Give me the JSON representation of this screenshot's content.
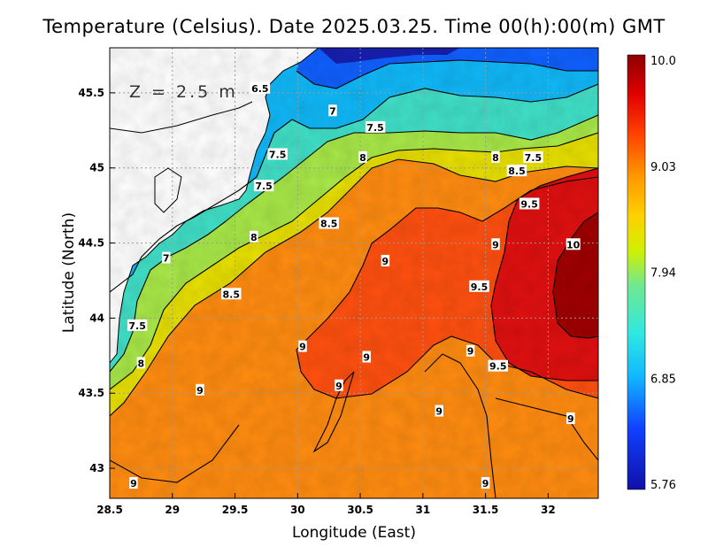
{
  "chart_data": {
    "type": "heatmap",
    "title": "Temperature (Celsius). Date 2025.03.25. Time 00(h):00(m) GMT",
    "xlabel": "Longitude (East)",
    "ylabel": "Latitude (North)",
    "annotation": "Z = 2.5 m",
    "xlim": [
      28.5,
      32.4
    ],
    "ylim": [
      42.8,
      45.8
    ],
    "x_ticks": [
      "28.5",
      "29",
      "29.5",
      "30",
      "30.5",
      "31",
      "31.5",
      "32"
    ],
    "y_ticks": [
      "43",
      "43.5",
      "44",
      "44.5",
      "45",
      "45.5"
    ],
    "grid": true,
    "colorbar": {
      "ticks": [
        "10.0",
        "9.03",
        "7.94",
        "6.85",
        "5.76"
      ],
      "range": [
        5.76,
        10.0
      ]
    },
    "contour_levels": [
      6.5,
      7,
      7.5,
      8,
      8.5,
      9,
      9.5,
      10
    ],
    "contour_labels": [
      {
        "text": "6.5",
        "lon": 29.7,
        "lat": 45.53
      },
      {
        "text": "7",
        "lon": 30.28,
        "lat": 45.38
      },
      {
        "text": "7.5",
        "lon": 30.62,
        "lat": 45.27
      },
      {
        "text": "7.5",
        "lon": 29.84,
        "lat": 45.09
      },
      {
        "text": "7.5",
        "lon": 29.73,
        "lat": 44.88
      },
      {
        "text": "8",
        "lon": 30.52,
        "lat": 45.07
      },
      {
        "text": "8",
        "lon": 31.58,
        "lat": 45.07
      },
      {
        "text": "7.5",
        "lon": 31.88,
        "lat": 45.07
      },
      {
        "text": "8.5",
        "lon": 31.75,
        "lat": 44.98
      },
      {
        "text": "9.5",
        "lon": 31.85,
        "lat": 44.76
      },
      {
        "text": "8.5",
        "lon": 30.25,
        "lat": 44.63
      },
      {
        "text": "8",
        "lon": 29.65,
        "lat": 44.54
      },
      {
        "text": "7",
        "lon": 28.95,
        "lat": 44.4
      },
      {
        "text": "9",
        "lon": 31.58,
        "lat": 44.49
      },
      {
        "text": "10",
        "lon": 32.2,
        "lat": 44.49
      },
      {
        "text": "9",
        "lon": 30.7,
        "lat": 44.38
      },
      {
        "text": "9.5",
        "lon": 31.45,
        "lat": 44.21
      },
      {
        "text": "8.5",
        "lon": 29.47,
        "lat": 44.16
      },
      {
        "text": "7.5",
        "lon": 28.72,
        "lat": 43.95
      },
      {
        "text": "9",
        "lon": 30.04,
        "lat": 43.81
      },
      {
        "text": "9",
        "lon": 30.55,
        "lat": 43.74
      },
      {
        "text": "9",
        "lon": 31.38,
        "lat": 43.78
      },
      {
        "text": "9.5",
        "lon": 31.6,
        "lat": 43.68
      },
      {
        "text": "8",
        "lon": 28.75,
        "lat": 43.7
      },
      {
        "text": "9",
        "lon": 29.22,
        "lat": 43.52
      },
      {
        "text": "9",
        "lon": 30.33,
        "lat": 43.55
      },
      {
        "text": "9",
        "lon": 31.13,
        "lat": 43.38
      },
      {
        "text": "9",
        "lon": 32.18,
        "lat": 43.33
      },
      {
        "text": "9",
        "lon": 28.69,
        "lat": 42.9
      },
      {
        "text": "9",
        "lon": 31.5,
        "lat": 42.9
      }
    ]
  }
}
